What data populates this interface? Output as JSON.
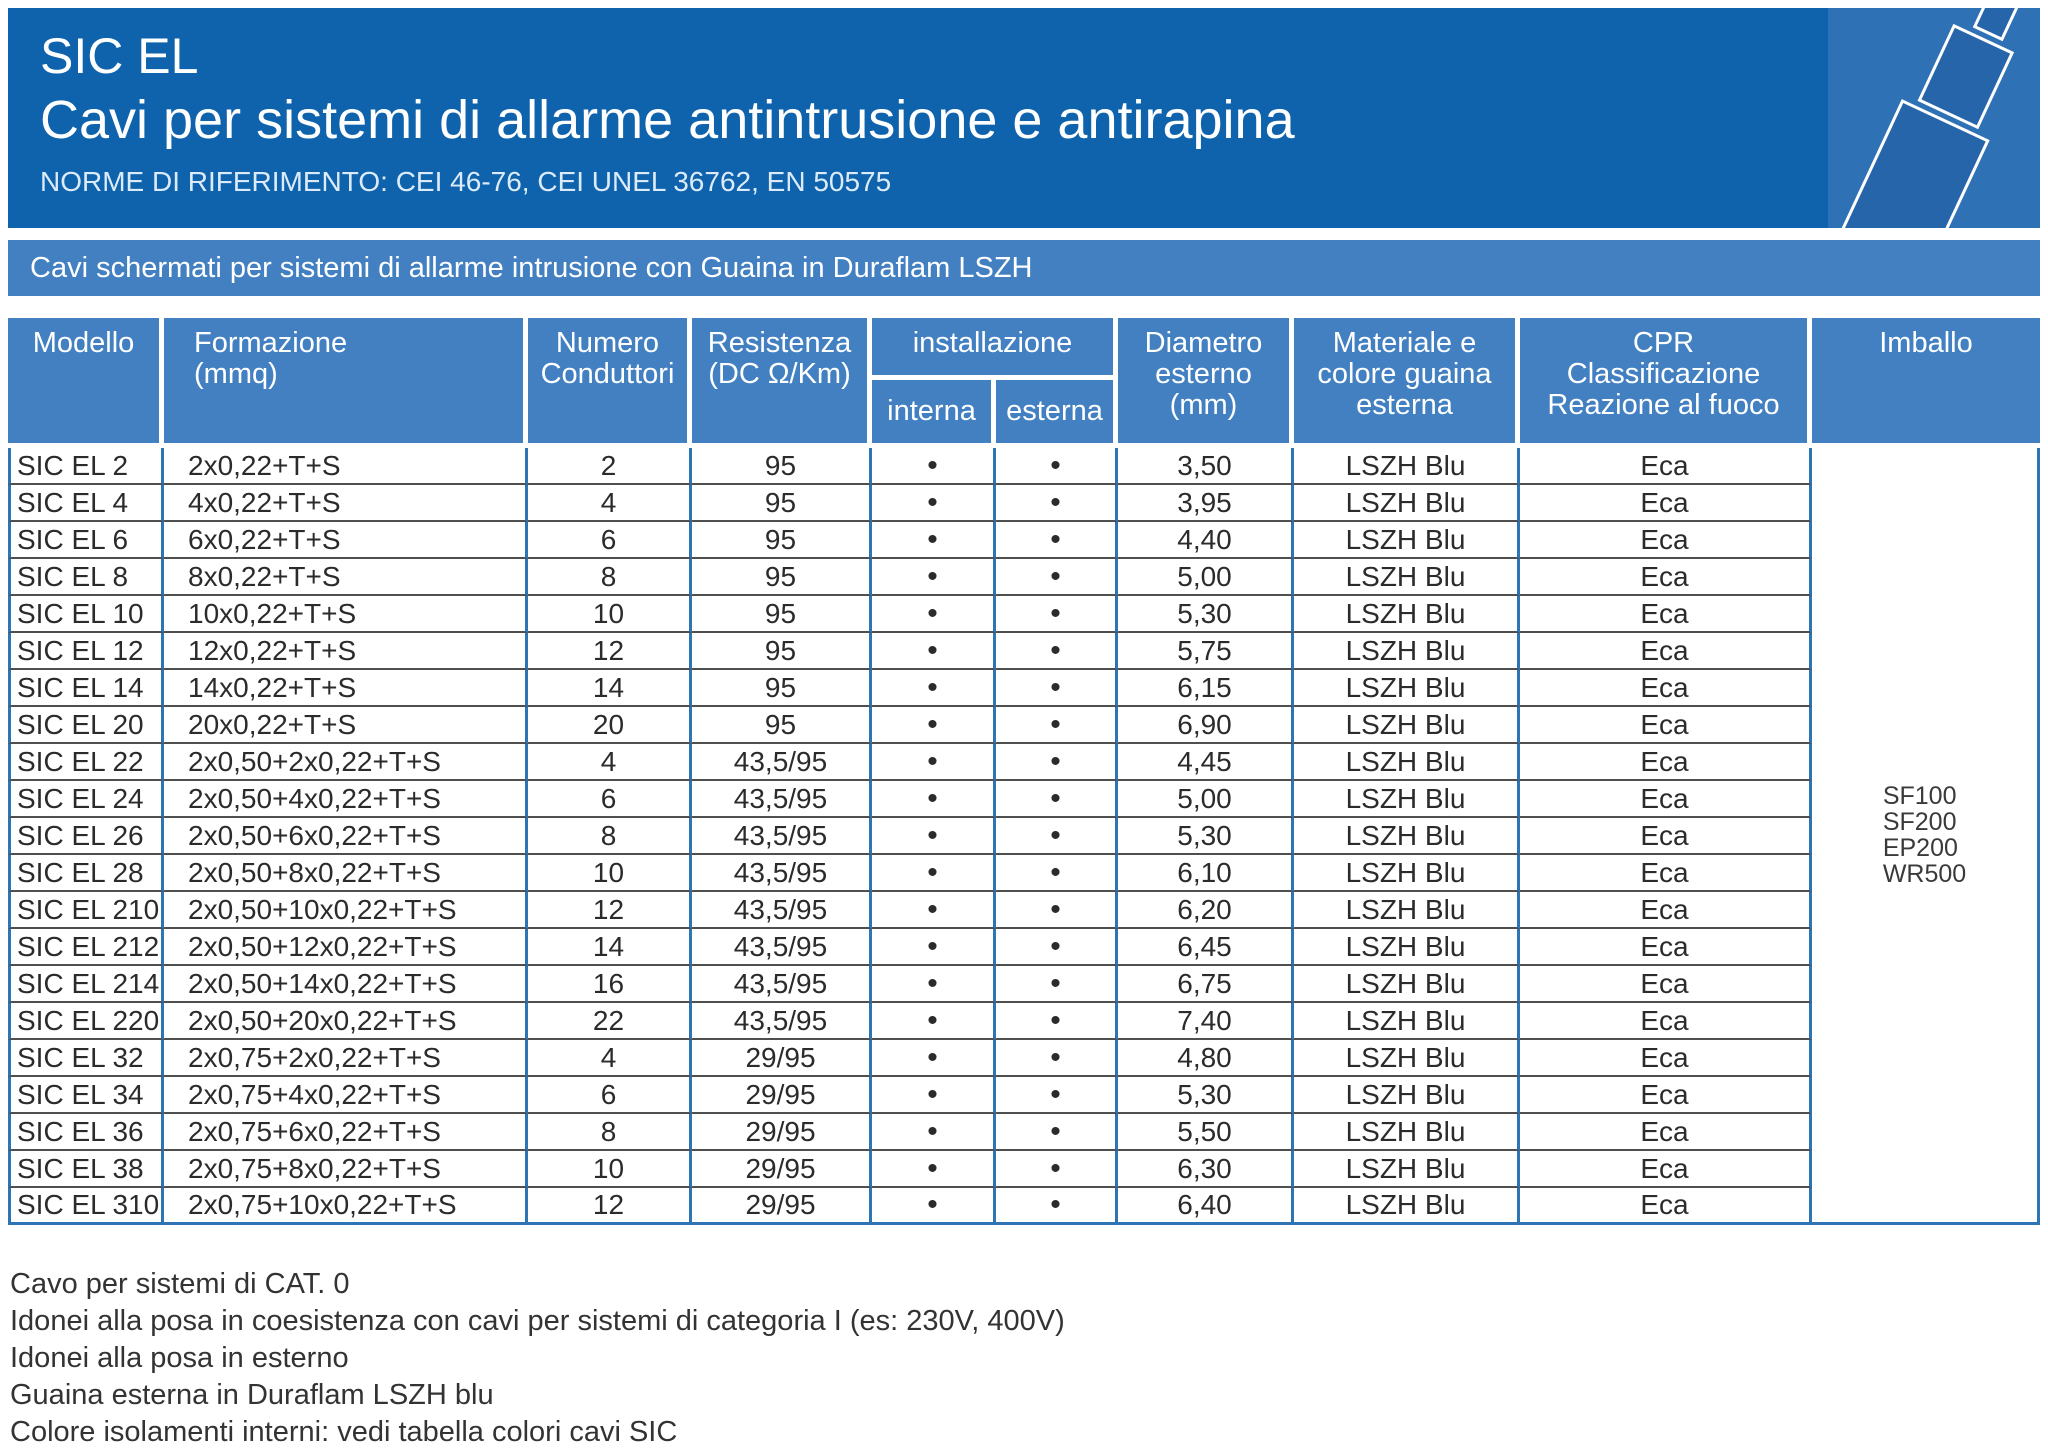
{
  "header": {
    "title": "SIC EL",
    "subtitle": "Cavi per sistemi di allarme antintrusione e antirapina",
    "norms": "NORME DI RIFERIMENTO: CEI 46-76, CEI UNEL 36762, EN 50575"
  },
  "section_band": "Cavi schermati per sistemi di allarme intrusione con Guaina in Duraflam LSZH",
  "colors": {
    "banner_blue": "#0E63AC",
    "band_blue": "#4280C2",
    "corner_square_blue": "#2E71B5",
    "cable_icon_blue": "#2765AA",
    "table_line_blue": "#2E75B6",
    "row_line_gray": "#4F4F4F"
  },
  "table": {
    "headers": {
      "modello": "Modello",
      "formazione": [
        "Formazione",
        "(mmq)"
      ],
      "numero": [
        "Numero",
        "Conduttori"
      ],
      "resistenza": [
        "Resistenza",
        "(DC Ω/Km)"
      ],
      "installazione": "installazione",
      "interna": "interna",
      "esterna": "esterna",
      "diametro": [
        "Diametro",
        "esterno",
        "(mm)"
      ],
      "materiale": [
        "Materiale e",
        "colore guaina",
        "esterna"
      ],
      "cpr": [
        "CPR",
        "Classificazione",
        "Reazione al fuoco"
      ],
      "imballo": "Imballo"
    },
    "dot": "•",
    "rows": [
      {
        "modello": "SIC EL 2",
        "formazione": "2x0,22+T+S",
        "conduttori": "2",
        "resistenza": "95",
        "interna": true,
        "esterna": true,
        "diametro": "3,50",
        "guaina": "LSZH Blu",
        "cpr": "Eca"
      },
      {
        "modello": "SIC EL 4",
        "formazione": "4x0,22+T+S",
        "conduttori": "4",
        "resistenza": "95",
        "interna": true,
        "esterna": true,
        "diametro": "3,95",
        "guaina": "LSZH Blu",
        "cpr": "Eca"
      },
      {
        "modello": "SIC EL 6",
        "formazione": "6x0,22+T+S",
        "conduttori": "6",
        "resistenza": "95",
        "interna": true,
        "esterna": true,
        "diametro": "4,40",
        "guaina": "LSZH Blu",
        "cpr": "Eca"
      },
      {
        "modello": "SIC EL 8",
        "formazione": "8x0,22+T+S",
        "conduttori": "8",
        "resistenza": "95",
        "interna": true,
        "esterna": true,
        "diametro": "5,00",
        "guaina": "LSZH Blu",
        "cpr": "Eca"
      },
      {
        "modello": "SIC EL 10",
        "formazione": "10x0,22+T+S",
        "conduttori": "10",
        "resistenza": "95",
        "interna": true,
        "esterna": true,
        "diametro": "5,30",
        "guaina": "LSZH Blu",
        "cpr": "Eca"
      },
      {
        "modello": "SIC EL 12",
        "formazione": "12x0,22+T+S",
        "conduttori": "12",
        "resistenza": "95",
        "interna": true,
        "esterna": true,
        "diametro": "5,75",
        "guaina": "LSZH Blu",
        "cpr": "Eca"
      },
      {
        "modello": "SIC EL 14",
        "formazione": "14x0,22+T+S",
        "conduttori": "14",
        "resistenza": "95",
        "interna": true,
        "esterna": true,
        "diametro": "6,15",
        "guaina": "LSZH Blu",
        "cpr": "Eca"
      },
      {
        "modello": "SIC EL 20",
        "formazione": "20x0,22+T+S",
        "conduttori": "20",
        "resistenza": "95",
        "interna": true,
        "esterna": true,
        "diametro": "6,90",
        "guaina": "LSZH Blu",
        "cpr": "Eca"
      },
      {
        "modello": "SIC EL 22",
        "formazione": "2x0,50+2x0,22+T+S",
        "conduttori": "4",
        "resistenza": "43,5/95",
        "interna": true,
        "esterna": true,
        "diametro": "4,45",
        "guaina": "LSZH Blu",
        "cpr": "Eca"
      },
      {
        "modello": "SIC EL 24",
        "formazione": "2x0,50+4x0,22+T+S",
        "conduttori": "6",
        "resistenza": "43,5/95",
        "interna": true,
        "esterna": true,
        "diametro": "5,00",
        "guaina": "LSZH Blu",
        "cpr": "Eca"
      },
      {
        "modello": "SIC EL 26",
        "formazione": "2x0,50+6x0,22+T+S",
        "conduttori": "8",
        "resistenza": "43,5/95",
        "interna": true,
        "esterna": true,
        "diametro": "5,30",
        "guaina": "LSZH Blu",
        "cpr": "Eca"
      },
      {
        "modello": "SIC EL 28",
        "formazione": "2x0,50+8x0,22+T+S",
        "conduttori": "10",
        "resistenza": "43,5/95",
        "interna": true,
        "esterna": true,
        "diametro": "6,10",
        "guaina": "LSZH Blu",
        "cpr": "Eca"
      },
      {
        "modello": "SIC EL 210",
        "formazione": "2x0,50+10x0,22+T+S",
        "conduttori": "12",
        "resistenza": "43,5/95",
        "interna": true,
        "esterna": true,
        "diametro": "6,20",
        "guaina": "LSZH Blu",
        "cpr": "Eca"
      },
      {
        "modello": "SIC EL 212",
        "formazione": "2x0,50+12x0,22+T+S",
        "conduttori": "14",
        "resistenza": "43,5/95",
        "interna": true,
        "esterna": true,
        "diametro": "6,45",
        "guaina": "LSZH Blu",
        "cpr": "Eca"
      },
      {
        "modello": "SIC EL 214",
        "formazione": "2x0,50+14x0,22+T+S",
        "conduttori": "16",
        "resistenza": "43,5/95",
        "interna": true,
        "esterna": true,
        "diametro": "6,75",
        "guaina": "LSZH Blu",
        "cpr": "Eca"
      },
      {
        "modello": "SIC EL 220",
        "formazione": "2x0,50+20x0,22+T+S",
        "conduttori": "22",
        "resistenza": "43,5/95",
        "interna": true,
        "esterna": true,
        "diametro": "7,40",
        "guaina": "LSZH Blu",
        "cpr": "Eca"
      },
      {
        "modello": "SIC EL 32",
        "formazione": "2x0,75+2x0,22+T+S",
        "conduttori": "4",
        "resistenza": "29/95",
        "interna": true,
        "esterna": true,
        "diametro": "4,80",
        "guaina": "LSZH Blu",
        "cpr": "Eca"
      },
      {
        "modello": "SIC EL 34",
        "formazione": "2x0,75+4x0,22+T+S",
        "conduttori": "6",
        "resistenza": "29/95",
        "interna": true,
        "esterna": true,
        "diametro": "5,30",
        "guaina": "LSZH Blu",
        "cpr": "Eca"
      },
      {
        "modello": "SIC EL 36",
        "formazione": "2x0,75+6x0,22+T+S",
        "conduttori": "8",
        "resistenza": "29/95",
        "interna": true,
        "esterna": true,
        "diametro": "5,50",
        "guaina": "LSZH Blu",
        "cpr": "Eca"
      },
      {
        "modello": "SIC EL 38",
        "formazione": "2x0,75+8x0,22+T+S",
        "conduttori": "10",
        "resistenza": "29/95",
        "interna": true,
        "esterna": true,
        "diametro": "6,30",
        "guaina": "LSZH Blu",
        "cpr": "Eca"
      },
      {
        "modello": "SIC EL 310",
        "formazione": "2x0,75+10x0,22+T+S",
        "conduttori": "12",
        "resistenza": "29/95",
        "interna": true,
        "esterna": true,
        "diametro": "6,40",
        "guaina": "LSZH Blu",
        "cpr": "Eca"
      }
    ],
    "imballo_values": [
      "SF100",
      "SF200",
      "EP200",
      "WR500"
    ]
  },
  "notes": [
    "Cavo per sistemi di CAT. 0",
    "Idonei alla posa in coesistenza con cavi per sistemi di categoria I (es: 230V, 400V)",
    "Idonei alla posa in esterno",
    "Guaina esterna in Duraflam LSZH blu",
    "Colore isolamenti interni: vedi tabella colori cavi SIC"
  ]
}
